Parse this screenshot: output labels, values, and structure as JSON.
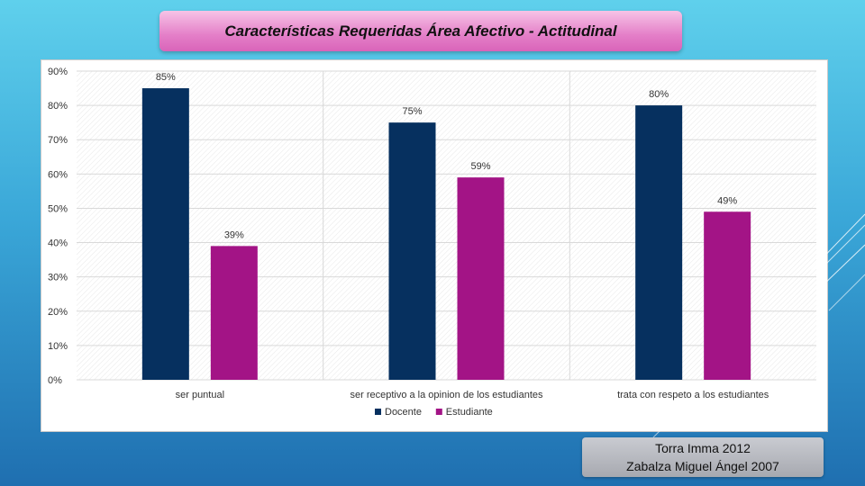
{
  "title": "Características Requeridas Área Afectivo - Actitudinal",
  "source": {
    "line1": "Torra Imma 2012",
    "line2": "Zabalza Miguel Ángel 2007"
  },
  "colors": {
    "docente": "#06305f",
    "estudiante": "#a31486",
    "grid": "#d9d9d9"
  },
  "chart_data": {
    "type": "bar",
    "title": "Características Requeridas Área Afectivo - Actitudinal",
    "categories": [
      "ser puntual",
      "ser receptivo a la opinion de los estudiantes",
      "trata con respeto a los estudiantes"
    ],
    "series": [
      {
        "name": "Docente",
        "values": [
          85,
          75,
          80
        ],
        "labels": [
          "85%",
          "75%",
          "80%"
        ]
      },
      {
        "name": "Estudiante",
        "values": [
          39,
          59,
          49
        ],
        "labels": [
          "39%",
          "59%",
          "49%"
        ]
      }
    ],
    "ylim": [
      0,
      90
    ],
    "yticks": [
      0,
      10,
      20,
      30,
      40,
      50,
      60,
      70,
      80,
      90
    ],
    "ytick_labels": [
      "0%",
      "10%",
      "20%",
      "30%",
      "40%",
      "50%",
      "60%",
      "70%",
      "80%",
      "90%"
    ],
    "xlabel": "",
    "ylabel": "",
    "grid": true,
    "legend": "bottom-center"
  }
}
